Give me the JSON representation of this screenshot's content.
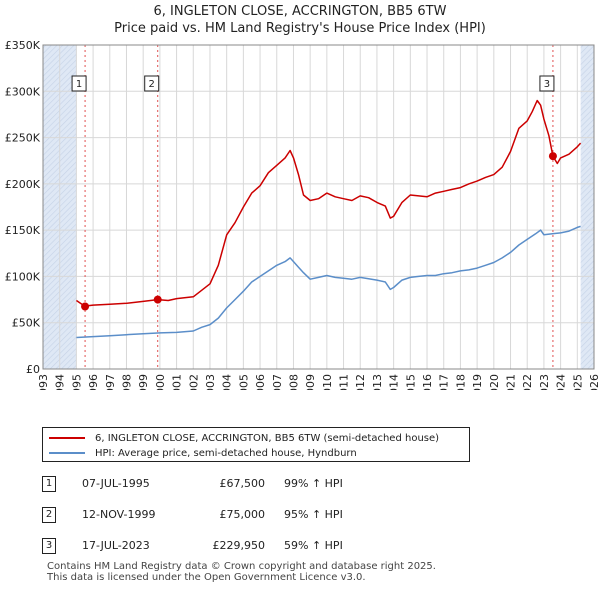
{
  "header": {
    "title_line1": "6, INGLETON CLOSE, ACCRINGTON, BB5 6TW",
    "title_line2": "Price paid vs. HM Land Registry's House Price Index (HPI)"
  },
  "legend": {
    "property_label": "6, INGLETON CLOSE, ACCRINGTON, BB5 6TW (semi-detached house)",
    "hpi_label": "HPI: Average price, semi-detached house, Hyndburn"
  },
  "sales": [
    {
      "num": "1",
      "date": "07-JUL-1995",
      "price": "£67,500",
      "hpi": "99% ↑ HPI"
    },
    {
      "num": "2",
      "date": "12-NOV-1999",
      "price": "£75,000",
      "hpi": "95% ↑ HPI"
    },
    {
      "num": "3",
      "date": "17-JUL-2023",
      "price": "£229,950",
      "hpi": "59% ↑ HPI"
    }
  ],
  "footer": {
    "line1": "Contains HM Land Registry data © Crown copyright and database right 2025.",
    "line2": "This data is licensed under the Open Government Licence v3.0."
  },
  "colors": {
    "property": "#cc0000",
    "hpi": "#5b8ec9",
    "shade": "#dfe8f5",
    "grid": "#d8d8d8"
  },
  "chart_data": {
    "type": "line",
    "title": "6, INGLETON CLOSE, ACCRINGTON, BB5 6TW — Price paid vs. HM Land Registry's House Price Index (HPI)",
    "xlabel": "",
    "ylabel": "",
    "xlim": [
      1993,
      2026
    ],
    "ylim": [
      0,
      350000
    ],
    "x_ticks": [
      1993,
      1994,
      1995,
      1996,
      1997,
      1998,
      1999,
      2000,
      2001,
      2002,
      2003,
      2004,
      2005,
      2006,
      2007,
      2008,
      2009,
      2010,
      2011,
      2012,
      2013,
      2014,
      2015,
      2016,
      2017,
      2018,
      2019,
      2020,
      2021,
      2022,
      2023,
      2024,
      2025,
      2026
    ],
    "y_ticks": [
      {
        "value": 0,
        "label": "£0"
      },
      {
        "value": 50000,
        "label": "£50K"
      },
      {
        "value": 100000,
        "label": "£100K"
      },
      {
        "value": 150000,
        "label": "£150K"
      },
      {
        "value": 200000,
        "label": "£200K"
      },
      {
        "value": 250000,
        "label": "£250K"
      },
      {
        "value": 300000,
        "label": "£300K"
      },
      {
        "value": 350000,
        "label": "£350K"
      }
    ],
    "grid": true,
    "data_range": [
      1995.0,
      2025.2
    ],
    "series": [
      {
        "name": "6, INGLETON CLOSE, ACCRINGTON, BB5 6TW (semi-detached house)",
        "color": "#cc0000",
        "x": [
          1995.0,
          1995.5,
          1996.0,
          1997.0,
          1998.0,
          1999.0,
          1999.87,
          2000.5,
          2001.0,
          2002.0,
          2003.0,
          2003.5,
          2004.0,
          2004.5,
          2005.0,
          2005.5,
          2006.0,
          2006.5,
          2007.0,
          2007.5,
          2007.8,
          2008.0,
          2008.3,
          2008.6,
          2009.0,
          2009.5,
          2010.0,
          2010.5,
          2011.0,
          2011.5,
          2012.0,
          2012.5,
          2013.0,
          2013.5,
          2013.8,
          2014.0,
          2014.5,
          2015.0,
          2015.5,
          2016.0,
          2016.5,
          2017.0,
          2017.5,
          2018.0,
          2018.5,
          2019.0,
          2019.5,
          2020.0,
          2020.5,
          2021.0,
          2021.5,
          2022.0,
          2022.3,
          2022.6,
          2022.8,
          2023.0,
          2023.3,
          2023.54,
          2023.8,
          2024.0,
          2024.5,
          2025.0,
          2025.2
        ],
        "y": [
          74000,
          68000,
          69000,
          70000,
          71000,
          73000,
          75000,
          74000,
          76000,
          78000,
          92000,
          112000,
          145000,
          158000,
          175000,
          190000,
          198000,
          212000,
          220000,
          228000,
          236000,
          228000,
          210000,
          188000,
          182000,
          184000,
          190000,
          186000,
          184000,
          182000,
          187000,
          185000,
          180000,
          176000,
          163000,
          165000,
          180000,
          188000,
          187000,
          186000,
          190000,
          192000,
          194000,
          196000,
          200000,
          203000,
          207000,
          210000,
          218000,
          235000,
          260000,
          268000,
          278000,
          290000,
          285000,
          270000,
          252000,
          229950,
          222000,
          228000,
          232000,
          240000,
          244000
        ]
      },
      {
        "name": "HPI: Average price, semi-detached house, Hyndburn",
        "color": "#5b8ec9",
        "x": [
          1995.0,
          1996.0,
          1997.0,
          1998.0,
          1999.0,
          2000.0,
          2001.0,
          2002.0,
          2002.5,
          2003.0,
          2003.5,
          2004.0,
          2004.5,
          2005.0,
          2005.5,
          2006.0,
          2006.5,
          2007.0,
          2007.5,
          2007.8,
          2008.0,
          2008.3,
          2008.6,
          2009.0,
          2009.5,
          2010.0,
          2010.5,
          2011.0,
          2011.5,
          2012.0,
          2012.5,
          2013.0,
          2013.5,
          2013.8,
          2014.0,
          2014.5,
          2015.0,
          2015.5,
          2016.0,
          2016.5,
          2017.0,
          2017.5,
          2018.0,
          2018.5,
          2019.0,
          2019.5,
          2020.0,
          2020.5,
          2021.0,
          2021.5,
          2022.0,
          2022.5,
          2022.8,
          2023.0,
          2023.5,
          2024.0,
          2024.5,
          2025.0,
          2025.2
        ],
        "y": [
          34000,
          35000,
          36000,
          37000,
          38000,
          39000,
          39500,
          41000,
          45000,
          48000,
          55000,
          66000,
          75000,
          84000,
          94000,
          100000,
          106000,
          112000,
          116000,
          120000,
          116000,
          110000,
          104000,
          97000,
          99000,
          101000,
          99000,
          98000,
          97000,
          99000,
          97500,
          96000,
          94000,
          86000,
          88000,
          96000,
          99000,
          100000,
          101000,
          101000,
          103000,
          104000,
          106000,
          107000,
          109000,
          112000,
          115000,
          120000,
          126000,
          134000,
          140000,
          146000,
          150000,
          145000,
          146000,
          147000,
          149000,
          153000,
          154000
        ]
      }
    ],
    "markers": [
      {
        "label": "1",
        "x": 1995.52,
        "y": 67500
      },
      {
        "label": "2",
        "x": 1999.87,
        "y": 75000
      },
      {
        "label": "3",
        "x": 2023.54,
        "y": 229950
      }
    ]
  }
}
